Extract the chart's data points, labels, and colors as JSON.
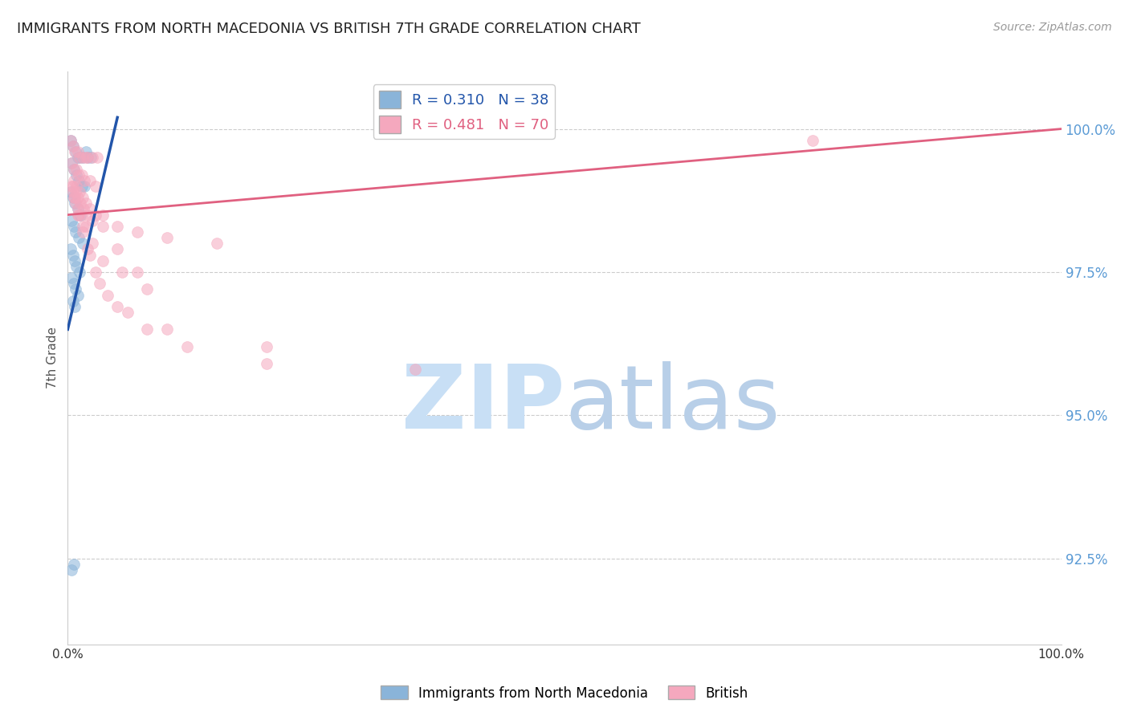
{
  "title": "IMMIGRANTS FROM NORTH MACEDONIA VS BRITISH 7TH GRADE CORRELATION CHART",
  "source": "Source: ZipAtlas.com",
  "ylabel": "7th Grade",
  "ylabel_right_ticks": [
    92.5,
    95.0,
    97.5,
    100.0
  ],
  "ylabel_right_labels": [
    "92.5%",
    "95.0%",
    "97.5%",
    "100.0%"
  ],
  "x_range": [
    0.0,
    100.0
  ],
  "y_range": [
    91.0,
    101.0
  ],
  "legend_label_1": "Immigrants from North Macedonia",
  "legend_label_2": "British",
  "r1": 0.31,
  "n1": 38,
  "r2": 0.481,
  "n2": 70,
  "color_blue": "#8ab4d9",
  "color_pink": "#f5a8be",
  "color_blue_line": "#2255aa",
  "color_pink_line": "#e06080",
  "color_ytick": "#5b9bd5",
  "watermark_zip_color": "#c8dff5",
  "watermark_atlas_color": "#b8cfe8",
  "background_color": "#ffffff",
  "grid_color": "#cccccc",
  "title_fontsize": 13,
  "source_fontsize": 10,
  "scatter_alpha": 0.55,
  "scatter_size": 100,
  "blue_x": [
    0.3,
    0.5,
    0.8,
    1.0,
    1.2,
    1.5,
    1.8,
    2.0,
    2.3,
    0.4,
    0.6,
    0.9,
    1.1,
    1.4,
    1.7,
    0.3,
    0.5,
    0.7,
    1.0,
    1.3,
    0.4,
    0.6,
    0.8,
    1.1,
    1.5,
    0.3,
    0.5,
    0.7,
    0.9,
    1.2,
    0.4,
    0.6,
    0.8,
    1.0,
    0.5,
    0.7,
    0.4,
    0.6
  ],
  "blue_y": [
    99.8,
    99.7,
    99.6,
    99.5,
    99.5,
    99.5,
    99.6,
    99.5,
    99.5,
    99.4,
    99.3,
    99.2,
    99.1,
    99.0,
    99.0,
    98.9,
    98.8,
    98.7,
    98.6,
    98.5,
    98.4,
    98.3,
    98.2,
    98.1,
    98.0,
    97.9,
    97.8,
    97.7,
    97.6,
    97.5,
    97.4,
    97.3,
    97.2,
    97.1,
    97.0,
    96.9,
    92.3,
    92.4
  ],
  "blue_trend_x": [
    0.0,
    5.0
  ],
  "blue_trend_y": [
    96.5,
    100.2
  ],
  "pink_x": [
    0.3,
    0.5,
    0.7,
    1.0,
    1.2,
    1.5,
    1.8,
    2.0,
    2.5,
    3.0,
    0.4,
    0.6,
    0.9,
    1.1,
    1.4,
    1.7,
    2.2,
    2.8,
    0.5,
    0.8,
    1.0,
    1.3,
    1.6,
    2.0,
    2.5,
    3.5,
    5.0,
    7.0,
    10.0,
    15.0,
    0.6,
    0.9,
    1.2,
    1.5,
    1.8,
    2.2,
    2.8,
    3.5,
    5.0,
    7.0,
    0.4,
    0.7,
    1.0,
    1.4,
    1.8,
    2.5,
    3.5,
    5.5,
    8.0,
    75.0,
    0.5,
    0.8,
    1.1,
    1.5,
    2.0,
    2.8,
    4.0,
    6.0,
    10.0,
    20.0,
    0.6,
    1.0,
    1.5,
    2.2,
    3.2,
    5.0,
    8.0,
    12.0,
    20.0,
    35.0
  ],
  "pink_y": [
    99.8,
    99.7,
    99.6,
    99.6,
    99.5,
    99.5,
    99.5,
    99.5,
    99.5,
    99.5,
    99.4,
    99.3,
    99.3,
    99.2,
    99.2,
    99.1,
    99.1,
    99.0,
    99.0,
    98.9,
    98.8,
    98.7,
    98.6,
    98.5,
    98.4,
    98.5,
    98.3,
    98.2,
    98.1,
    98.0,
    99.1,
    99.0,
    98.9,
    98.8,
    98.7,
    98.6,
    98.5,
    98.3,
    97.9,
    97.5,
    99.0,
    98.8,
    98.6,
    98.5,
    98.3,
    98.0,
    97.7,
    97.5,
    97.2,
    99.8,
    98.9,
    98.7,
    98.5,
    98.3,
    97.9,
    97.5,
    97.1,
    96.8,
    96.5,
    96.2,
    98.8,
    98.5,
    98.2,
    97.8,
    97.3,
    96.9,
    96.5,
    96.2,
    95.9,
    95.8
  ],
  "pink_trend_x": [
    0.0,
    100.0
  ],
  "pink_trend_y": [
    98.5,
    100.0
  ]
}
